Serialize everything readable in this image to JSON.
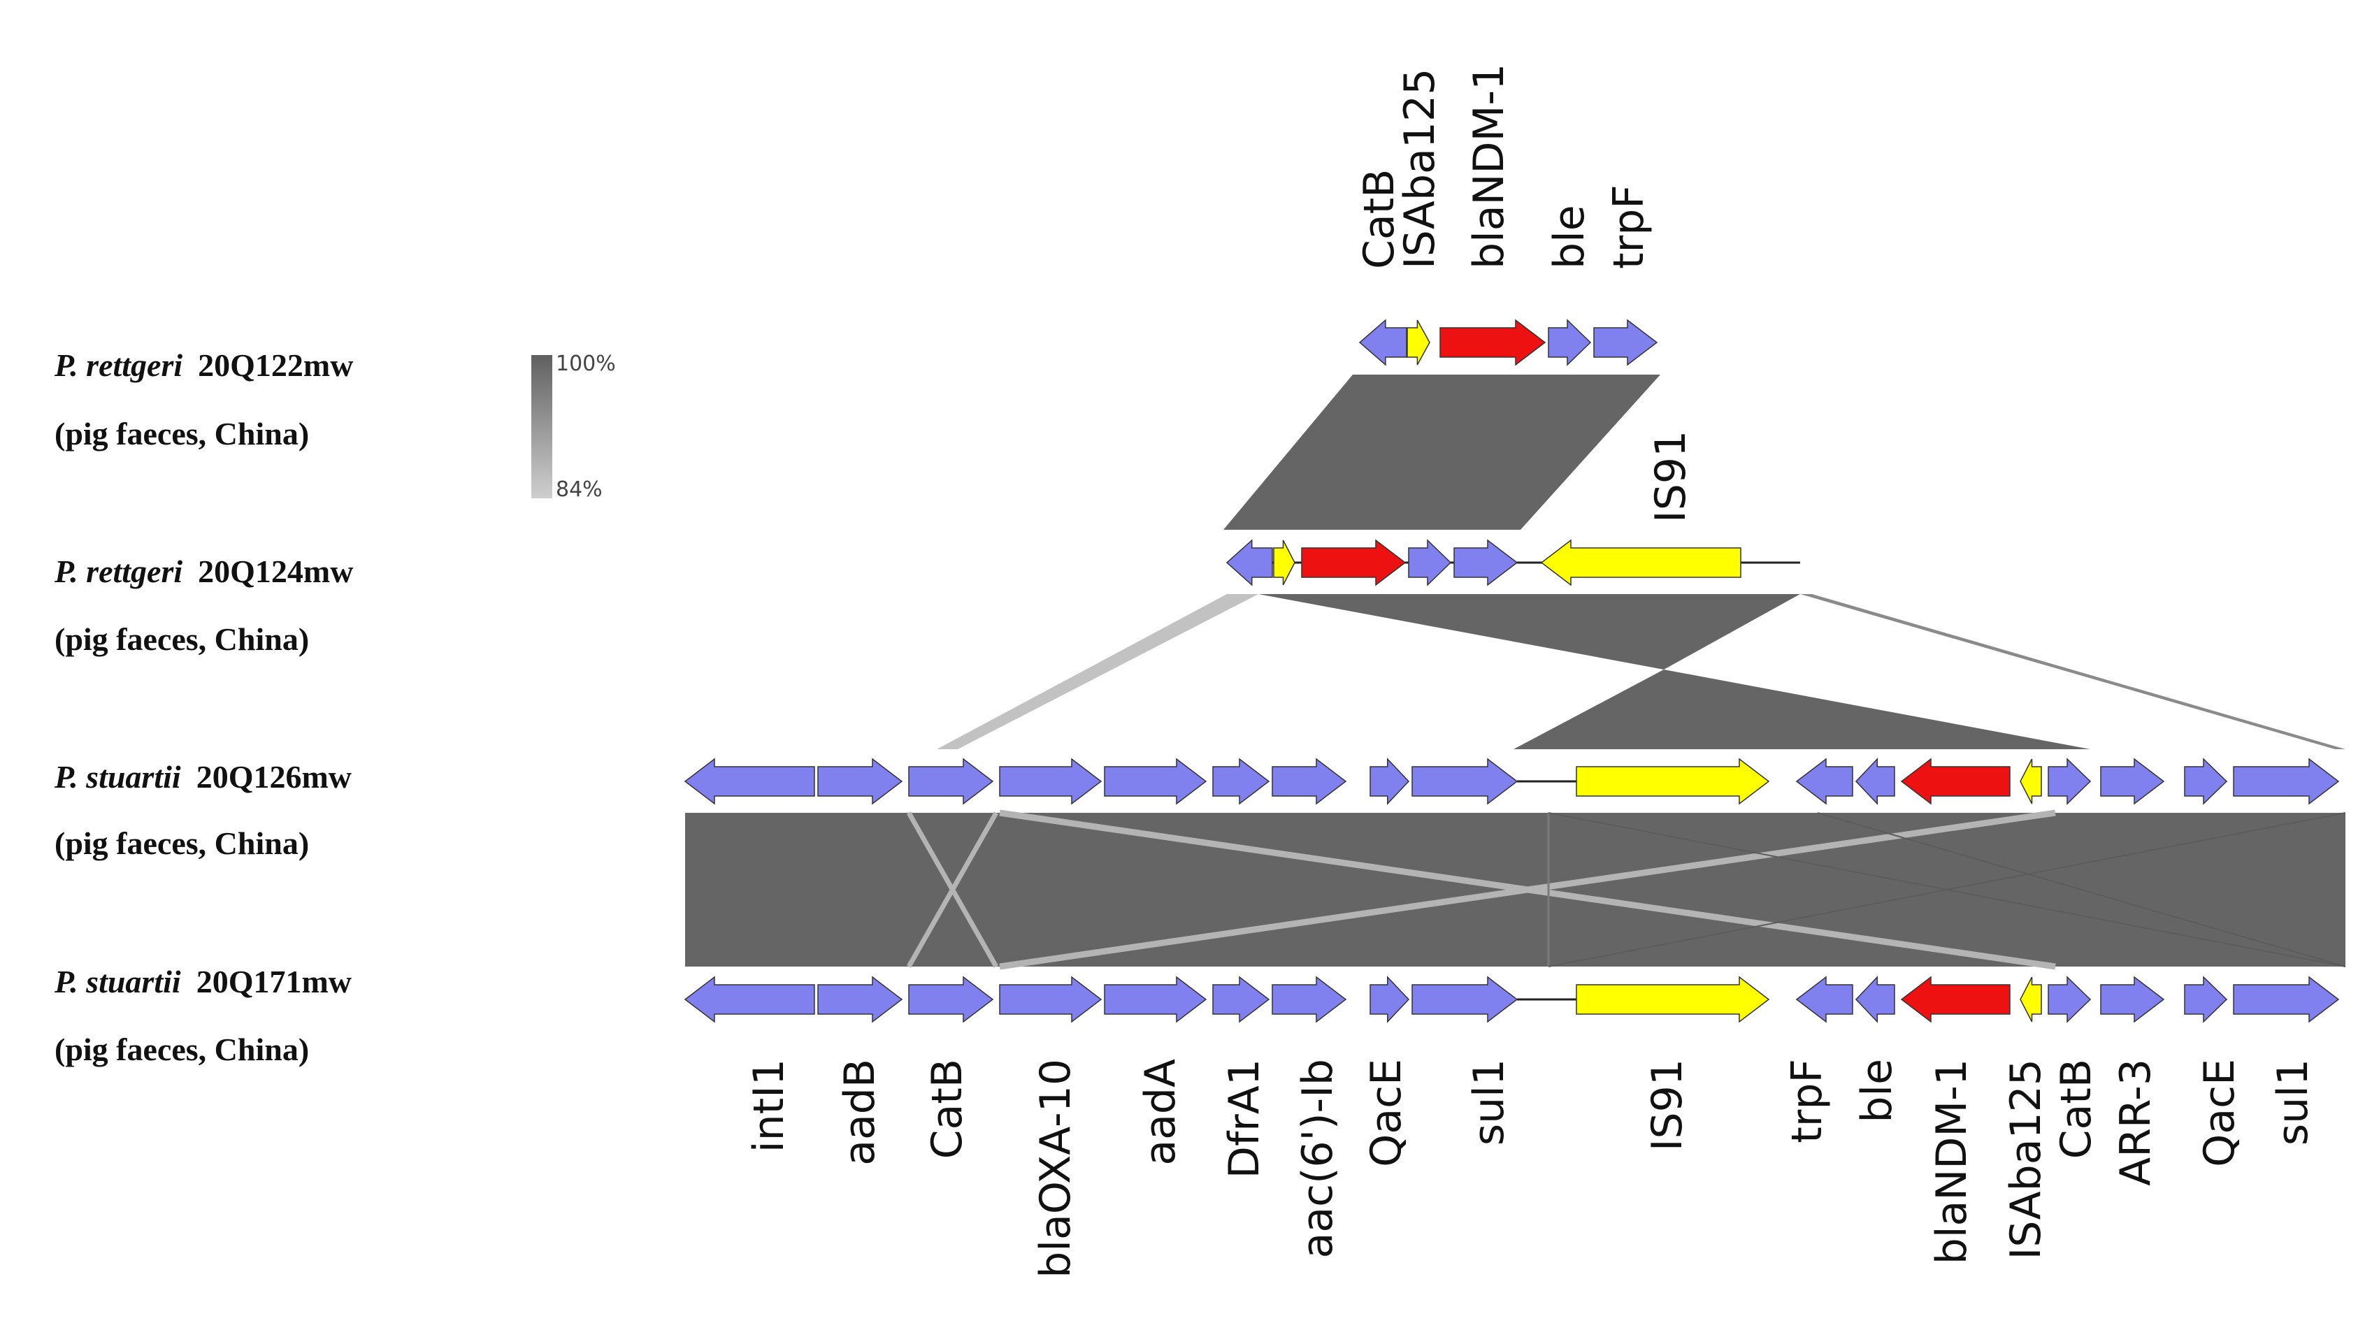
{
  "tracks": [
    {
      "id": "t1",
      "species": "P. rettgeri",
      "strain": "20Q122mw",
      "source": "(pig faeces, China)",
      "top_labels": [
        "CatB",
        "ISAba125",
        "blaNDM-1",
        "ble",
        "trpF"
      ]
    },
    {
      "id": "t2",
      "species": "P. rettgeri",
      "strain": "20Q124mw",
      "source": "(pig faeces, China)",
      "top_labels": [
        "IS91"
      ]
    },
    {
      "id": "t3",
      "species": "P. stuartii",
      "strain": "20Q126mw",
      "source": "(pig faeces, China)"
    },
    {
      "id": "t4",
      "species": "P. stuartii",
      "strain": "20Q171mw",
      "source": "(pig faeces, China)",
      "bottom_labels": [
        "intI1",
        "aadB",
        "CatB",
        "blaOXA-10",
        "aadA",
        "DfrA1",
        "aac(6')-Ib",
        "QacE",
        "sul1",
        "IS91",
        "trpF",
        "ble",
        "blaNDM-1",
        "ISAba125",
        "CatB",
        "ARR-3",
        "QacE",
        "sul1"
      ]
    }
  ],
  "identity_scale": {
    "max_label": "100%",
    "min_label": "84%",
    "max_color": "#606060",
    "min_color": "#cfcfcf"
  },
  "gene_colors": {
    "default": "#8080ee",
    "mobile_element": "#ffff00",
    "carbapenemase": "#ee1111"
  }
}
